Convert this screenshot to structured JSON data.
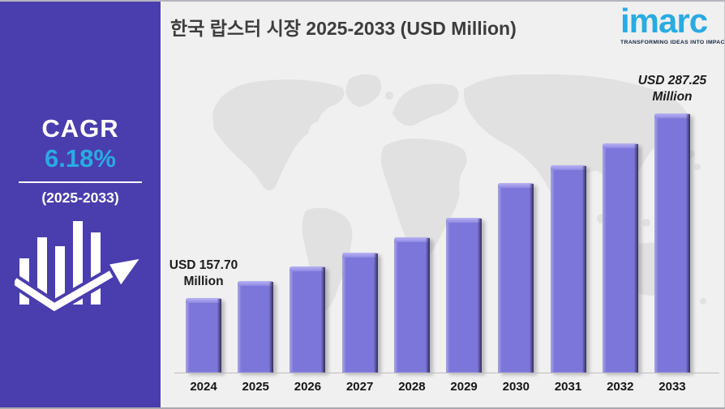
{
  "header": {
    "title": "한국 랍스터 시장 2025-2033 (USD Million)"
  },
  "logo": {
    "text": "imarc",
    "tagline": "TRANSFORMING IDEAS INTO IMPACT"
  },
  "sidebar": {
    "cagr_label": "CAGR",
    "cagr_value": "6.18%",
    "period": "(2025-2033)",
    "icon": "bar-chart-growth-arrow"
  },
  "chart_data": {
    "type": "bar",
    "title": "한국 랍스터 시장 2025-2033 (USD Million)",
    "unit": "USD Million",
    "categories": [
      "2024",
      "2025",
      "2026",
      "2027",
      "2028",
      "2029",
      "2030",
      "2031",
      "2032",
      "2033"
    ],
    "values": [
      157.7,
      169.6,
      179.9,
      189.5,
      200.3,
      213.9,
      238.4,
      250.9,
      266.2,
      287.25
    ],
    "labeled_points": [
      {
        "category": "2024",
        "value": 157.7,
        "line1": "USD 157.70",
        "line2": "Million",
        "italic": false,
        "index": 0
      },
      {
        "category": "2033",
        "value": 287.25,
        "line1": "USD 287.25",
        "line2": "Million",
        "italic": true,
        "index": 9
      }
    ],
    "xlabel": "",
    "ylabel": "",
    "legend": "none",
    "gridlines": false,
    "y_axis_visible": false,
    "background": "light world map watermark"
  },
  "colors": {
    "sidebar_purple": "#4a3dae",
    "accent_blue": "#29abe2",
    "bar_purple": "#7d76da",
    "title_text": "#3c3c3c",
    "chart_background": "#f0f0f0",
    "map_gray": "#e1e1e1"
  }
}
